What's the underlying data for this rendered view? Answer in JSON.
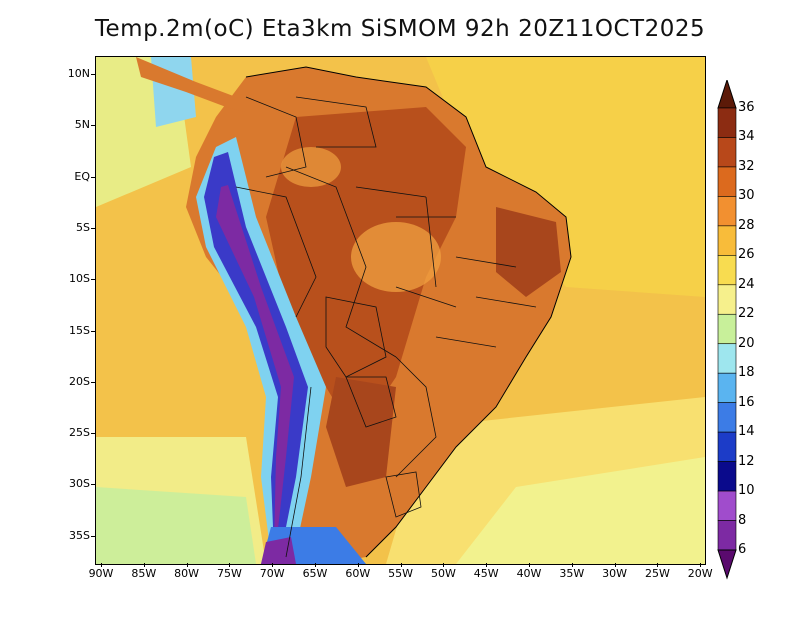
{
  "title": "Temp.2m(oC) Eta3km SiSMOM 92h 20Z11OCT2025",
  "lat_labels": [
    "10N",
    "5N",
    "EQ",
    "5S",
    "10S",
    "15S",
    "20S",
    "25S",
    "30S",
    "35S"
  ],
  "lon_labels": [
    "90W",
    "85W",
    "80W",
    "75W",
    "70W",
    "65W",
    "60W",
    "55W",
    "50W",
    "45W",
    "40W",
    "35W",
    "30W",
    "25W",
    "20W"
  ],
  "colorbar": {
    "labels": [
      "6",
      "8",
      "10",
      "12",
      "14",
      "16",
      "18",
      "20",
      "22",
      "24",
      "26",
      "28",
      "30",
      "32",
      "34",
      "36"
    ],
    "colors": [
      "#5a0a6e",
      "#7d2aa3",
      "#a04ccc",
      "#0a0a8c",
      "#1c3cc8",
      "#3c7ce6",
      "#5ab4f0",
      "#9ee6ee",
      "#c8f09a",
      "#f6f08c",
      "#f8dc50",
      "#f8bc3a",
      "#f29030",
      "#dc6a1e",
      "#b8481a",
      "#8c2c12",
      "#5c1a08"
    ]
  },
  "map": {
    "ocean_color": "#f3c24a",
    "land_color": "#d9792e",
    "land_hot_color": "#a8461c",
    "andes_cold_color": "#3a3ac8",
    "andes_mid_color": "#7fd2f0"
  }
}
